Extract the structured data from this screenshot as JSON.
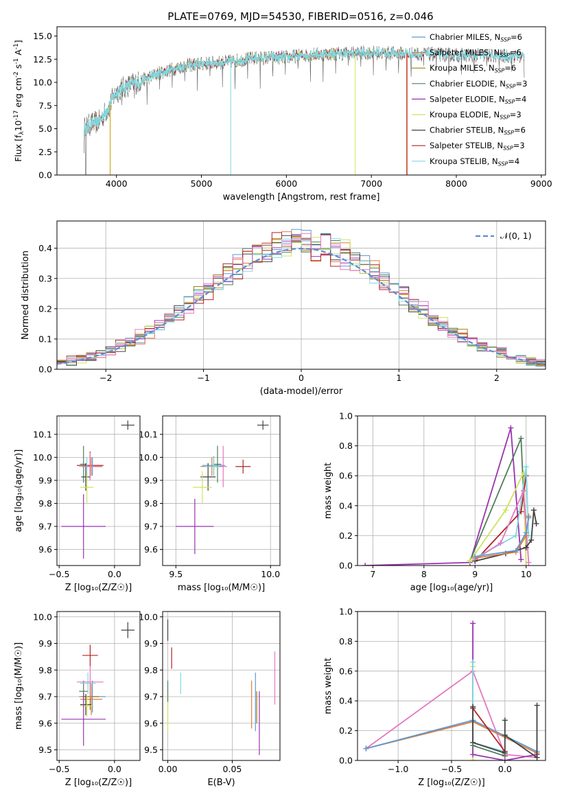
{
  "figure": {
    "title": "PLATE=0769, MJD=54530, FIBERID=0516, z=0.046"
  },
  "colors": {
    "Chabrier MILES": "#5b9bd5",
    "Salpeter MILES": "#e07b39",
    "Kroupa MILES": "#9b7d0e",
    "Chabrier ELODIE": "#4f7d5a",
    "Salpeter ELODIE": "#9b30b0",
    "Kroupa ELODIE": "#cfe35a",
    "Chabrier STELIB": "#404040",
    "Salpeter STELIB": "#b22222",
    "Kroupa STELIB": "#80d8e0",
    "pink": "#e377c2",
    "normal": "#5b8bd9"
  },
  "chart_data": [
    {
      "id": "spectrum",
      "type": "line",
      "xlabel": "wavelength [Angstrom, rest frame]",
      "ylabel_pre": "Flux [f",
      "ylabel_sub": "λ",
      "ylabel_mid": "10",
      "ylabel_sup": "-17",
      "ylabel_post": " erg cm",
      "ylabel_sup2": "-2",
      "ylabel_post2": " s",
      "ylabel_sup3": "-1",
      "ylabel_post3": " A",
      "ylabel_sup4": "-1",
      "ylabel_end": "]",
      "xlim": [
        3300,
        9050
      ],
      "ylim": [
        0,
        16
      ],
      "xticks": [
        4000,
        5000,
        6000,
        7000,
        8000,
        9000
      ],
      "yticks": [
        0.0,
        2.5,
        5.0,
        7.5,
        10.0,
        12.5,
        15.0
      ],
      "ytick_labels": [
        "0.0",
        "2.5",
        "5.0",
        "7.5",
        "10.0",
        "12.5",
        "15.0"
      ],
      "continuum": [
        [
          3620,
          5.0
        ],
        [
          3700,
          5.5
        ],
        [
          3800,
          5.8
        ],
        [
          3900,
          7.2
        ],
        [
          4000,
          9.0
        ],
        [
          4100,
          9.5
        ],
        [
          4300,
          10.2
        ],
        [
          4500,
          11.0
        ],
        [
          4800,
          11.8
        ],
        [
          5000,
          12.0
        ],
        [
          5300,
          12.2
        ],
        [
          5600,
          12.6
        ],
        [
          6000,
          12.7
        ],
        [
          6300,
          13.0
        ],
        [
          6600,
          13.1
        ],
        [
          7000,
          13.2
        ],
        [
          7400,
          13.1
        ],
        [
          7800,
          13.0
        ],
        [
          8200,
          12.9
        ],
        [
          8800,
          12.8
        ]
      ],
      "legend": [
        {
          "label": "Chabrier MILES",
          "n": "6"
        },
        {
          "label": "Salpeter MILES",
          "n": "6"
        },
        {
          "label": "Kroupa MILES",
          "n": "6"
        },
        {
          "label": "Chabrier ELODIE",
          "n": "3"
        },
        {
          "label": "Salpeter ELODIE",
          "n": "4"
        },
        {
          "label": "Kroupa ELODIE",
          "n": "3"
        },
        {
          "label": "Chabrier STELIB",
          "n": "6"
        },
        {
          "label": "Salpeter STELIB",
          "n": "3"
        },
        {
          "label": "Kroupa STELIB",
          "n": "4"
        }
      ],
      "legend_sub": "SSP",
      "legend_prefix": "N"
    },
    {
      "id": "residuals",
      "type": "bar",
      "xlabel": "(data-model)/error",
      "ylabel": "Normed distribution",
      "xlim": [
        -2.5,
        2.5
      ],
      "ylim": [
        0,
        0.49
      ],
      "xticks": [
        -2,
        -1,
        0,
        1,
        2
      ],
      "xtick_labels": [
        "−2",
        "−1",
        "0",
        "1",
        "2"
      ],
      "yticks": [
        0.0,
        0.1,
        0.2,
        0.3,
        0.4
      ],
      "ytick_labels": [
        "0.0",
        "0.1",
        "0.2",
        "0.3",
        "0.4"
      ],
      "bin_width": 0.1,
      "legend": "𝒩(0, 1)",
      "grid": true
    },
    {
      "id": "age-vs-Z",
      "type": "scatter",
      "xlabel": "Z [log₁₀(Z/Z☉)]",
      "ylabel": "age  [log₁₀(age/yr)]",
      "xlim": [
        -0.52,
        0.23
      ],
      "ylim": [
        9.53,
        10.18
      ],
      "xticks": [
        -0.5,
        0.0
      ],
      "xtick_labels": [
        "−0.5",
        "0.0"
      ],
      "yticks": [
        9.6,
        9.7,
        9.8,
        9.9,
        10.0,
        10.1
      ],
      "ytick_labels": [
        "9.6",
        "9.7",
        "9.8",
        "9.9",
        "10.0",
        "10.1"
      ],
      "points": [
        {
          "x": 0.12,
          "y": 10.14,
          "ex": 0.06,
          "ey": 0.02,
          "c": "Chabrier STELIB"
        },
        {
          "x": -0.22,
          "y": 9.965,
          "ex": 0.12,
          "ey": 0.06,
          "c": "Salpeter STELIB"
        },
        {
          "x": -0.2,
          "y": 9.96,
          "ex": 0.09,
          "ey": 0.04,
          "c": "Chabrier MILES"
        },
        {
          "x": -0.21,
          "y": 9.96,
          "ex": 0.09,
          "ey": 0.04,
          "c": "Salpeter MILES"
        },
        {
          "x": -0.22,
          "y": 9.96,
          "ex": 0.07,
          "ey": 0.04,
          "c": "Kroupa MILES"
        },
        {
          "x": -0.28,
          "y": 9.97,
          "ex": 0.03,
          "ey": 0.08,
          "c": "Chabrier ELODIE"
        },
        {
          "x": -0.26,
          "y": 9.915,
          "ex": 0.04,
          "ey": 0.06,
          "c": "Chabrier STELIB"
        },
        {
          "x": -0.25,
          "y": 9.87,
          "ex": 0.06,
          "ey": 0.07,
          "c": "Kroupa ELODIE"
        },
        {
          "x": -0.25,
          "y": 9.96,
          "ex": 0.07,
          "ey": 0.04,
          "c": "Kroupa STELIB"
        },
        {
          "x": -0.22,
          "y": 9.96,
          "ex": 0.07,
          "ey": 0.06,
          "c": "pink"
        },
        {
          "x": -0.28,
          "y": 9.7,
          "ex": 0.2,
          "ey": 0.14,
          "c": "Salpeter ELODIE"
        }
      ]
    },
    {
      "id": "age-vs-mass",
      "type": "scatter",
      "xlabel": "mass [log₁₀(M/M☉)]",
      "ylabel": "",
      "xlim": [
        9.43,
        10.05
      ],
      "ylim": [
        9.53,
        10.18
      ],
      "xticks": [
        9.5,
        10.0
      ],
      "xtick_labels": [
        "9.5",
        "10.0"
      ],
      "yticks": [
        9.6,
        9.7,
        9.8,
        9.9,
        10.0,
        10.1
      ],
      "ytick_labels": [
        "9.6",
        "9.7",
        "9.8",
        "9.9",
        "10.0",
        "10.1"
      ],
      "points": [
        {
          "x": 9.96,
          "y": 10.14,
          "ex": 0.03,
          "ey": 0.02,
          "c": "Chabrier STELIB"
        },
        {
          "x": 9.855,
          "y": 9.96,
          "ex": 0.04,
          "ey": 0.03,
          "c": "Salpeter STELIB"
        },
        {
          "x": 9.7,
          "y": 9.965,
          "ex": 0.06,
          "ey": 0.04,
          "c": "Chabrier MILES"
        },
        {
          "x": 9.69,
          "y": 9.96,
          "ex": 0.06,
          "ey": 0.04,
          "c": "Salpeter MILES"
        },
        {
          "x": 9.7,
          "y": 9.96,
          "ex": 0.05,
          "ey": 0.04,
          "c": "Kroupa MILES"
        },
        {
          "x": 9.72,
          "y": 9.97,
          "ex": 0.02,
          "ey": 0.08,
          "c": "Chabrier ELODIE"
        },
        {
          "x": 9.67,
          "y": 9.915,
          "ex": 0.04,
          "ey": 0.06,
          "c": "Chabrier STELIB"
        },
        {
          "x": 9.64,
          "y": 9.87,
          "ex": 0.05,
          "ey": 0.07,
          "c": "Kroupa ELODIE"
        },
        {
          "x": 9.7,
          "y": 9.96,
          "ex": 0.05,
          "ey": 0.04,
          "c": "Kroupa STELIB"
        },
        {
          "x": 9.75,
          "y": 9.96,
          "ex": 0.02,
          "ey": 0.09,
          "c": "pink"
        },
        {
          "x": 9.6,
          "y": 9.7,
          "ex": 0.1,
          "ey": 0.12,
          "c": "Salpeter ELODIE"
        }
      ]
    },
    {
      "id": "weight-vs-age",
      "type": "line",
      "xlabel": "age  [log₁₀(age/yr)]",
      "ylabel": "mass weight",
      "xlim": [
        6.7,
        10.38
      ],
      "ylim": [
        0,
        1.0
      ],
      "xticks": [
        7,
        8,
        9,
        10
      ],
      "xtick_labels": [
        "7",
        "8",
        "9",
        "10"
      ],
      "yticks": [
        0.0,
        0.2,
        0.4,
        0.6,
        0.8,
        1.0
      ],
      "ytick_labels": [
        "0.0",
        "0.2",
        "0.4",
        "0.6",
        "0.8",
        "1.0"
      ],
      "series": [
        {
          "c": "Salpeter ELODIE",
          "pts": [
            [
              6.85,
              0.0
            ],
            [
              8.9,
              0.02
            ],
            [
              9.7,
              0.92
            ],
            [
              9.9,
              0.04
            ]
          ]
        },
        {
          "c": "Chabrier ELODIE",
          "pts": [
            [
              8.9,
              0.03
            ],
            [
              9.9,
              0.85
            ],
            [
              10.0,
              0.12
            ]
          ]
        },
        {
          "c": "Kroupa ELODIE",
          "pts": [
            [
              8.9,
              0.03
            ],
            [
              9.6,
              0.37
            ],
            [
              9.95,
              0.62
            ],
            [
              10.0,
              0.0
            ]
          ]
        },
        {
          "c": "Salpeter STELIB",
          "pts": [
            [
              9.0,
              0.03
            ],
            [
              9.9,
              0.36
            ],
            [
              10.0,
              0.6
            ]
          ]
        },
        {
          "c": "Kroupa STELIB",
          "pts": [
            [
              9.0,
              0.05
            ],
            [
              9.8,
              0.2
            ],
            [
              10.0,
              0.66
            ],
            [
              10.05,
              0.2
            ]
          ]
        },
        {
          "c": "pink",
          "pts": [
            [
              9.0,
              0.04
            ],
            [
              9.5,
              0.15
            ],
            [
              9.95,
              0.5
            ],
            [
              10.05,
              0.02
            ]
          ]
        },
        {
          "c": "Chabrier STELIB",
          "pts": [
            [
              9.0,
              0.03
            ],
            [
              9.6,
              0.08
            ],
            [
              10.0,
              0.12
            ],
            [
              10.1,
              0.17
            ],
            [
              10.15,
              0.37
            ],
            [
              10.2,
              0.28
            ]
          ]
        },
        {
          "c": "Salpeter MILES",
          "pts": [
            [
              9.0,
              0.05
            ],
            [
              9.8,
              0.09
            ],
            [
              10.0,
              0.2
            ],
            [
              10.05,
              0.33
            ]
          ]
        },
        {
          "c": "Chabrier MILES",
          "pts": [
            [
              9.0,
              0.06
            ],
            [
              9.8,
              0.1
            ],
            [
              10.0,
              0.22
            ],
            [
              10.05,
              0.32
            ]
          ]
        }
      ]
    },
    {
      "id": "mass-vs-Z",
      "type": "scatter",
      "xlabel": "Z [log₁₀(Z/Z☉)]",
      "ylabel": "mass [log₁₀(M/M☉)]",
      "xlim": [
        -0.52,
        0.23
      ],
      "ylim": [
        9.46,
        10.02
      ],
      "xticks": [
        -0.5,
        0.0
      ],
      "xtick_labels": [
        "−0.5",
        "0.0"
      ],
      "yticks": [
        9.5,
        9.6,
        9.7,
        9.8,
        9.9,
        10.0
      ],
      "ytick_labels": [
        "9.5",
        "9.6",
        "9.7",
        "9.8",
        "9.9",
        "10.0"
      ],
      "points": [
        {
          "x": 0.12,
          "y": 9.95,
          "ex": 0.06,
          "ey": 0.03,
          "c": "Chabrier STELIB"
        },
        {
          "x": -0.22,
          "y": 9.855,
          "ex": 0.07,
          "ey": 0.04,
          "c": "Salpeter STELIB"
        },
        {
          "x": -0.2,
          "y": 9.7,
          "ex": 0.12,
          "ey": 0.06,
          "c": "Chabrier MILES"
        },
        {
          "x": -0.21,
          "y": 9.69,
          "ex": 0.1,
          "ey": 0.06,
          "c": "Salpeter MILES"
        },
        {
          "x": -0.22,
          "y": 9.7,
          "ex": 0.08,
          "ey": 0.05,
          "c": "Kroupa MILES"
        },
        {
          "x": -0.28,
          "y": 9.72,
          "ex": 0.04,
          "ey": 0.04,
          "c": "Chabrier ELODIE"
        },
        {
          "x": -0.26,
          "y": 9.67,
          "ex": 0.05,
          "ey": 0.04,
          "c": "Chabrier STELIB"
        },
        {
          "x": -0.25,
          "y": 9.665,
          "ex": 0.06,
          "ey": 0.04,
          "c": "Kroupa ELODIE"
        },
        {
          "x": -0.24,
          "y": 9.75,
          "ex": 0.07,
          "ey": 0.04,
          "c": "Kroupa STELIB"
        },
        {
          "x": -0.22,
          "y": 9.755,
          "ex": 0.12,
          "ey": 0.06,
          "c": "pink"
        },
        {
          "x": -0.28,
          "y": 9.615,
          "ex": 0.2,
          "ey": 0.1,
          "c": "Salpeter ELODIE"
        }
      ]
    },
    {
      "id": "mass-vs-EBV",
      "type": "scatter",
      "xlabel": "E(B-V)",
      "ylabel": "",
      "xlim": [
        -0.004,
        0.087
      ],
      "ylim": [
        9.46,
        10.02
      ],
      "xticks": [
        0.0,
        0.05
      ],
      "xtick_labels": [
        "0.00",
        "0.05"
      ],
      "yticks": [
        9.5,
        9.6,
        9.7,
        9.8,
        9.9,
        10.0
      ],
      "ytick_labels": [
        "9.5",
        "9.6",
        "9.7",
        "9.8",
        "9.9",
        "10.0"
      ],
      "points": [
        {
          "x": 0.0,
          "y": 9.95,
          "ex": 0,
          "ey": 0.04,
          "c": "Chabrier STELIB"
        },
        {
          "x": 0.003,
          "y": 9.845,
          "ex": 0,
          "ey": 0.04,
          "c": "Salpeter STELIB"
        },
        {
          "x": 0.01,
          "y": 9.75,
          "ex": 0,
          "ey": 0.04,
          "c": "Kroupa STELIB"
        },
        {
          "x": 0.0,
          "y": 9.66,
          "ex": 0,
          "ey": 0.09,
          "c": "Kroupa ELODIE"
        },
        {
          "x": 0.0,
          "y": 9.72,
          "ex": 0,
          "ey": 0.04,
          "c": "Chabrier ELODIE"
        },
        {
          "x": 0.065,
          "y": 9.67,
          "ex": 0,
          "ey": 0.09,
          "c": "Salpeter MILES"
        },
        {
          "x": 0.068,
          "y": 9.68,
          "ex": 0,
          "ey": 0.11,
          "c": "Chabrier MILES"
        },
        {
          "x": 0.069,
          "y": 9.66,
          "ex": 0,
          "ey": 0.06,
          "c": "Kroupa MILES"
        },
        {
          "x": 0.071,
          "y": 9.6,
          "ex": 0,
          "ey": 0.12,
          "c": "Salpeter ELODIE"
        },
        {
          "x": 0.083,
          "y": 9.77,
          "ex": 0,
          "ey": 0.1,
          "c": "pink"
        }
      ]
    },
    {
      "id": "weight-vs-Z",
      "type": "line",
      "xlabel": "Z [log₁₀(Z/Z☉)]",
      "ylabel": "mass weight",
      "xlim": [
        -1.38,
        0.38
      ],
      "ylim": [
        0,
        1.0
      ],
      "xticks": [
        -1.0,
        -0.5,
        0.0
      ],
      "xtick_labels": [
        "−1.0",
        "−0.5",
        "0.0"
      ],
      "yticks": [
        0.0,
        0.2,
        0.4,
        0.6,
        0.8,
        1.0
      ],
      "ytick_labels": [
        "0.0",
        "0.2",
        "0.4",
        "0.6",
        "0.8",
        "1.0"
      ],
      "series": [
        {
          "c": "pink",
          "pts": [
            [
              -1.3,
              0.08
            ],
            [
              -0.3,
              0.6
            ],
            [
              0.0,
              0.04
            ],
            [
              0.3,
              0.02
            ]
          ]
        },
        {
          "c": "Salpeter MILES",
          "pts": [
            [
              -1.3,
              0.08
            ],
            [
              -0.3,
              0.26
            ],
            [
              0.3,
              0.05
            ]
          ]
        },
        {
          "c": "Chabrier MILES",
          "pts": [
            [
              -1.3,
              0.08
            ],
            [
              -0.3,
              0.27
            ],
            [
              0.3,
              0.06
            ]
          ]
        },
        {
          "c": "Kroupa ELODIE",
          "pts": [
            [
              -0.3,
              0.63
            ],
            [
              -0.3,
              0.0
            ]
          ]
        },
        {
          "c": "Salpeter ELODIE",
          "pts": [
            [
              -0.3,
              0.92
            ],
            [
              -0.3,
              0.04
            ],
            [
              0.0,
              0.0
            ],
            [
              0.3,
              0.04
            ]
          ]
        },
        {
          "c": "Kroupa STELIB",
          "pts": [
            [
              -0.3,
              0.66
            ],
            [
              -0.3,
              0.12
            ],
            [
              0.0,
              0.06
            ]
          ]
        },
        {
          "c": "Salpeter STELIB",
          "pts": [
            [
              -0.3,
              0.35
            ],
            [
              0.0,
              0.06
            ]
          ]
        },
        {
          "c": "Chabrier STELIB",
          "pts": [
            [
              -0.3,
              0.36
            ],
            [
              -0.3,
              0.12
            ],
            [
              0.0,
              0.05
            ],
            [
              0.0,
              0.27
            ],
            [
              0.0,
              0.17
            ],
            [
              0.3,
              0.02
            ],
            [
              0.3,
              0.37
            ]
          ]
        },
        {
          "c": "Chabrier ELODIE",
          "pts": [
            [
              -0.3,
              0.1
            ],
            [
              0.0,
              0.03
            ]
          ]
        }
      ]
    }
  ]
}
